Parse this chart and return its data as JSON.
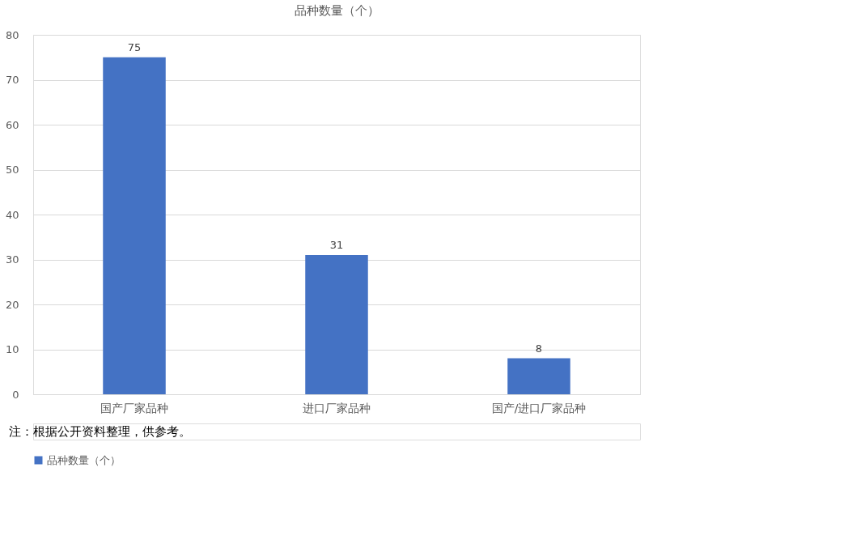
{
  "chart_data": {
    "type": "bar",
    "title": "品种数量（个）",
    "categories": [
      "国产厂家品种",
      "进口厂家品种",
      "国产/进口厂家品种"
    ],
    "series": [
      {
        "name": "品种数量（个）",
        "color": "#4472c4",
        "values": [
          75,
          31,
          8
        ]
      }
    ],
    "ylim": [
      0,
      80
    ],
    "yticks": [
      0,
      10,
      20,
      30,
      40,
      50,
      60,
      70,
      80
    ],
    "grid": "y",
    "legend": "bottom",
    "data_labels": true,
    "annotations": [
      "注：根据公开资料整理，供参考。"
    ]
  }
}
